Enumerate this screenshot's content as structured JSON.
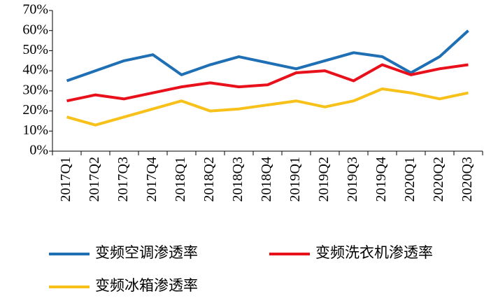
{
  "chart_data": {
    "type": "line",
    "categories": [
      "2017Q1",
      "2017Q2",
      "2017Q3",
      "2017Q4",
      "2018Q1",
      "2018Q2",
      "2018Q3",
      "2018Q4",
      "2019Q1",
      "2019Q2",
      "2019Q3",
      "2019Q4",
      "2020Q1",
      "2020Q2",
      "2020Q3"
    ],
    "series": [
      {
        "name": "变频空调渗透率",
        "color": "#1f6fb5",
        "values": [
          35,
          40,
          45,
          48,
          38,
          43,
          47,
          44,
          41,
          45,
          49,
          47,
          39,
          47,
          60
        ]
      },
      {
        "name": "变频洗衣机渗透率",
        "color": "#e8101a",
        "values": [
          25,
          28,
          26,
          29,
          32,
          34,
          32,
          33,
          39,
          40,
          35,
          43,
          38,
          41,
          43
        ]
      },
      {
        "name": "变频冰箱渗透率",
        "color": "#f7c11a",
        "values": [
          17,
          13,
          17,
          21,
          25,
          20,
          21,
          23,
          25,
          22,
          25,
          31,
          29,
          26,
          29
        ]
      }
    ],
    "ylim": [
      0,
      70
    ],
    "yticks": [
      {
        "value": 0,
        "label": "0%"
      },
      {
        "value": 10,
        "label": "10%"
      },
      {
        "value": 20,
        "label": "20%"
      },
      {
        "value": 30,
        "label": "30%"
      },
      {
        "value": 40,
        "label": "40%"
      },
      {
        "value": 50,
        "label": "50%"
      },
      {
        "value": 60,
        "label": "60%"
      },
      {
        "value": 70,
        "label": "70%"
      }
    ],
    "grid": false
  }
}
